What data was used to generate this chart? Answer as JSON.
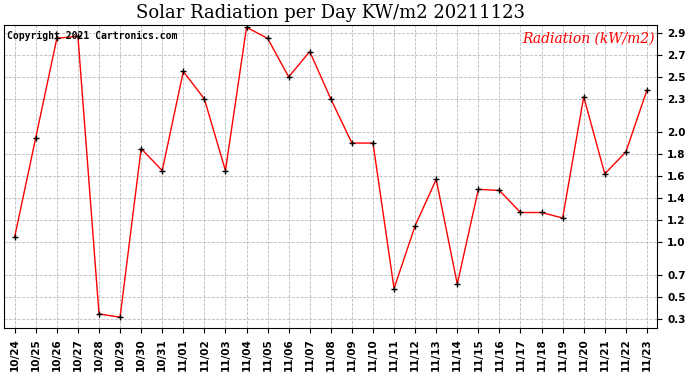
{
  "title": "Solar Radiation per Day KW/m2 20211123",
  "copyright_text": "Copyright 2021 Cartronics.com",
  "legend_label": "Radiation (kW/m2)",
  "dates": [
    "10/24",
    "10/25",
    "10/26",
    "10/27",
    "10/28",
    "10/29",
    "10/30",
    "10/31",
    "11/01",
    "11/02",
    "11/03",
    "11/04",
    "11/05",
    "11/06",
    "11/07",
    "11/08",
    "11/09",
    "11/10",
    "11/11",
    "11/12",
    "11/13",
    "11/14",
    "11/15",
    "11/16",
    "11/17",
    "11/18",
    "11/19",
    "11/20",
    "11/21",
    "11/22",
    "11/23"
  ],
  "values": [
    1.05,
    1.95,
    2.85,
    2.87,
    0.35,
    0.32,
    1.85,
    1.65,
    2.55,
    2.3,
    1.65,
    2.95,
    2.85,
    2.5,
    2.73,
    2.3,
    1.9,
    1.9,
    0.58,
    1.15,
    1.57,
    0.62,
    1.48,
    1.47,
    1.27,
    1.27,
    1.22,
    2.32,
    1.62,
    1.82,
    2.38
  ],
  "yticks": [
    0.3,
    0.5,
    0.7,
    1.0,
    1.2,
    1.4,
    1.6,
    1.8,
    2.0,
    2.3,
    2.5,
    2.7,
    2.9
  ],
  "ylim_low": 0.22,
  "ylim_high": 2.97,
  "line_color": "red",
  "marker": "+",
  "marker_color": "black",
  "bg_color": "white",
  "grid_color": "#bbbbbb",
  "title_fontsize": 13,
  "copyright_fontsize": 7,
  "legend_fontsize": 10,
  "tick_fontsize": 7.5
}
